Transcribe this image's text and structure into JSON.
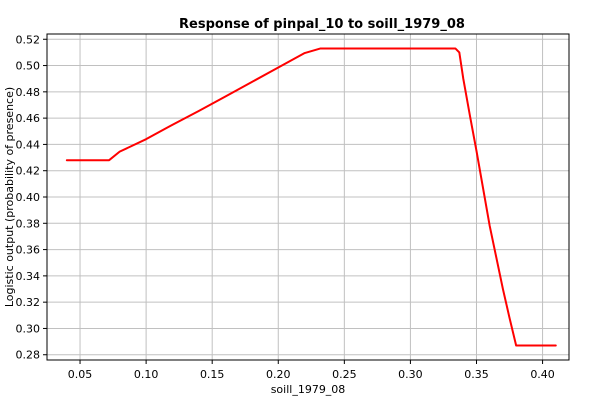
{
  "chart_data": {
    "type": "line",
    "title": "Response of pinpal_10 to soill_1979_08",
    "xlabel": "soill_1979_08",
    "ylabel": "Logistic output (probability of presence)",
    "xlim": [
      0.025,
      0.42
    ],
    "ylim": [
      0.276,
      0.524
    ],
    "xticks": [
      0.05,
      0.1,
      0.15,
      0.2,
      0.25,
      0.3,
      0.35,
      0.4
    ],
    "xtick_labels": [
      "0.05",
      "0.10",
      "0.15",
      "0.20",
      "0.25",
      "0.30",
      "0.35",
      "0.40"
    ],
    "yticks": [
      0.28,
      0.3,
      0.32,
      0.34,
      0.36,
      0.38,
      0.4,
      0.42,
      0.44,
      0.46,
      0.48,
      0.5,
      0.52
    ],
    "ytick_labels": [
      "0.28",
      "0.30",
      "0.32",
      "0.34",
      "0.36",
      "0.38",
      "0.40",
      "0.42",
      "0.44",
      "0.46",
      "0.48",
      "0.50",
      "0.52"
    ],
    "grid": true,
    "line_color": "#ff0000",
    "series": [
      {
        "x": [
          0.04,
          0.072,
          0.08,
          0.1,
          0.12,
          0.14,
          0.16,
          0.18,
          0.2,
          0.22,
          0.232,
          0.3,
          0.334,
          0.337,
          0.34,
          0.345,
          0.35,
          0.36,
          0.37,
          0.375,
          0.38,
          0.41
        ],
        "y": [
          0.428,
          0.428,
          0.4345,
          0.444,
          0.455,
          0.4655,
          0.4765,
          0.4875,
          0.4985,
          0.5095,
          0.513,
          0.513,
          0.513,
          0.51,
          0.49,
          0.462,
          0.435,
          0.378,
          0.33,
          0.308,
          0.287,
          0.287
        ]
      }
    ]
  }
}
